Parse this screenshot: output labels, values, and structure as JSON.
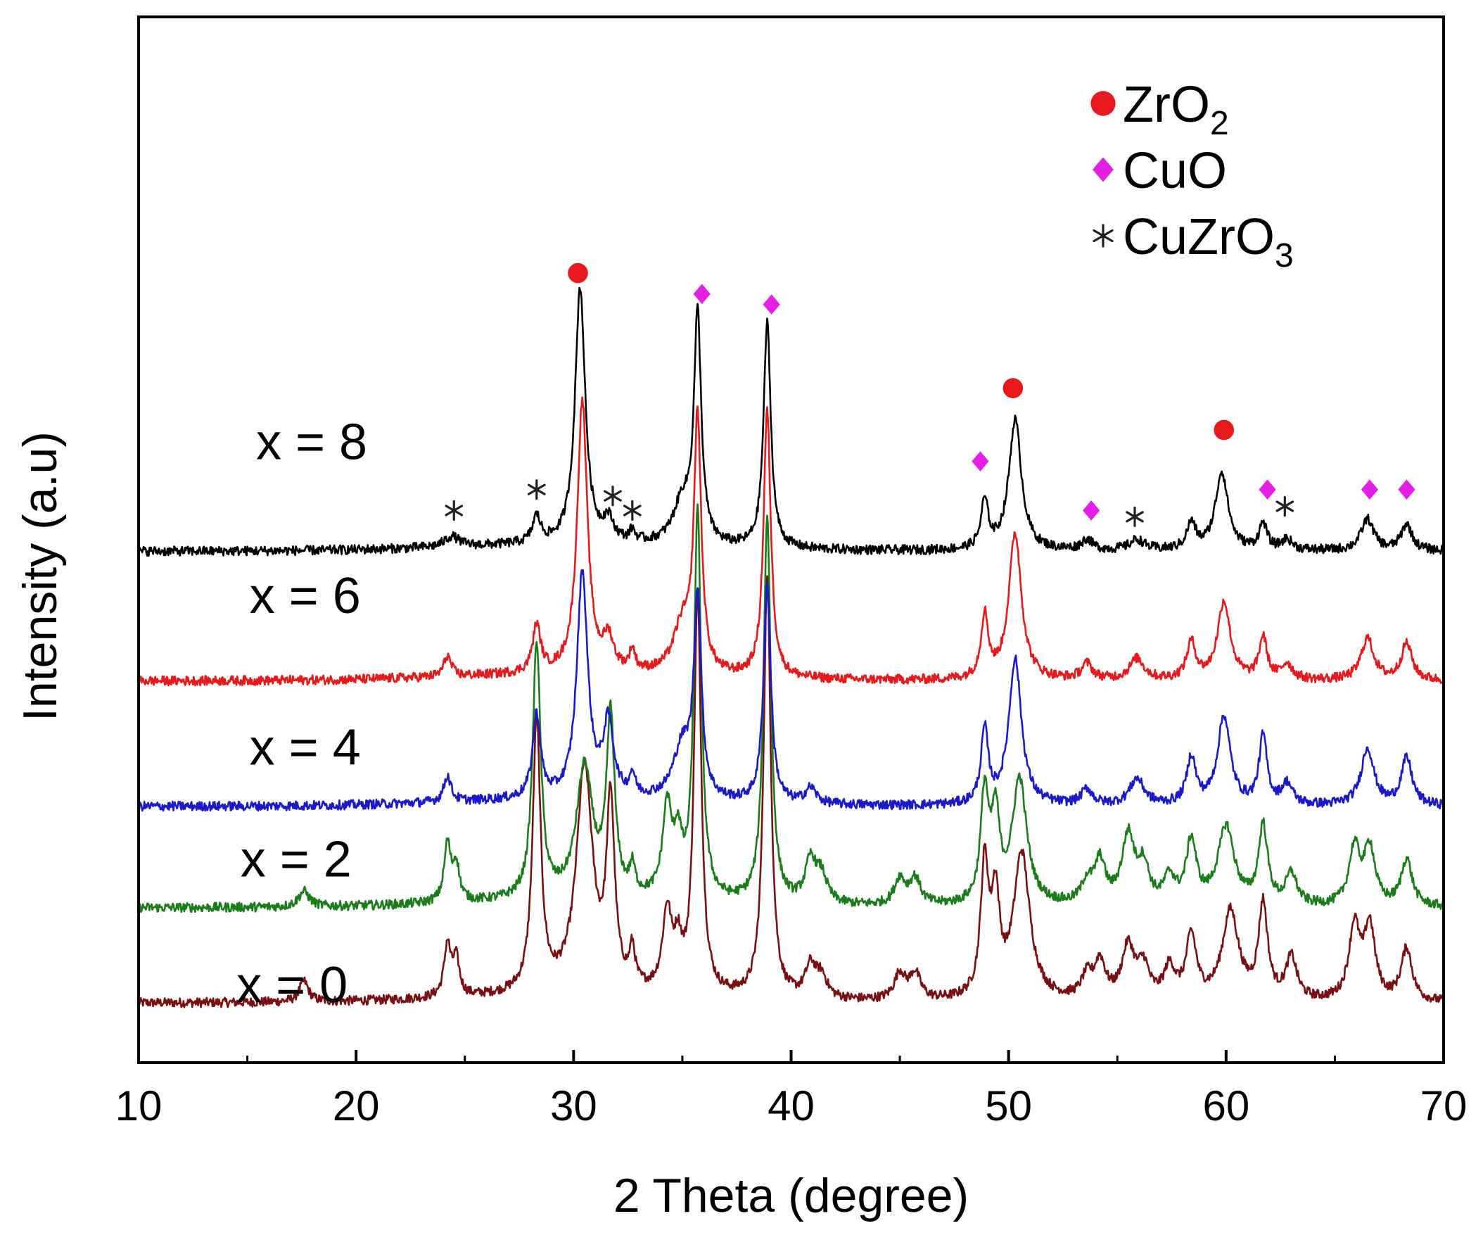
{
  "chart_data": {
    "type": "line",
    "title": "",
    "xlabel": "2 Theta (degree)",
    "ylabel": "Intensity (a.u)",
    "xlim": [
      10,
      70
    ],
    "ylim": [
      0,
      1
    ],
    "xticks": [
      10,
      20,
      30,
      40,
      50,
      60,
      70
    ],
    "xtick_labels": [
      "10",
      "20",
      "30",
      "40",
      "50",
      "60",
      "70"
    ],
    "grid": false,
    "legend_position": "top-right",
    "legend": [
      {
        "marker": "circle",
        "color": "#e8191b",
        "label": "ZrO",
        "sub": "2"
      },
      {
        "marker": "diamond",
        "color": "#e61fe6",
        "label": "CuO",
        "sub": ""
      },
      {
        "marker": "asterisk",
        "color": "#222222",
        "label": "CuZrO",
        "sub": "3"
      }
    ],
    "series": [
      {
        "name": "x = 0",
        "label": "x = 0",
        "color": "#7a0f12",
        "baseline": 0.057,
        "peaks": [
          [
            17.6,
            0.02,
            0.25
          ],
          [
            24.2,
            0.05,
            0.18
          ],
          [
            24.6,
            0.035,
            0.18
          ],
          [
            28.3,
            0.26,
            0.22
          ],
          [
            30.5,
            0.215,
            0.45
          ],
          [
            31.7,
            0.175,
            0.22
          ],
          [
            32.7,
            0.035,
            0.15
          ],
          [
            34.3,
            0.075,
            0.25
          ],
          [
            34.8,
            0.04,
            0.22
          ],
          [
            35.7,
            0.38,
            0.2
          ],
          [
            38.9,
            0.4,
            0.2
          ],
          [
            40.9,
            0.03,
            0.3
          ],
          [
            41.4,
            0.02,
            0.3
          ],
          [
            45.0,
            0.025,
            0.3
          ],
          [
            45.7,
            0.025,
            0.3
          ],
          [
            48.9,
            0.125,
            0.22
          ],
          [
            49.4,
            0.09,
            0.22
          ],
          [
            50.6,
            0.14,
            0.45
          ],
          [
            53.6,
            0.02,
            0.3
          ],
          [
            54.2,
            0.035,
            0.3
          ],
          [
            55.5,
            0.05,
            0.35
          ],
          [
            56.2,
            0.03,
            0.3
          ],
          [
            57.4,
            0.03,
            0.3
          ],
          [
            58.4,
            0.06,
            0.28
          ],
          [
            60.2,
            0.085,
            0.45
          ],
          [
            61.7,
            0.09,
            0.25
          ],
          [
            63.0,
            0.04,
            0.3
          ],
          [
            65.9,
            0.07,
            0.3
          ],
          [
            66.6,
            0.07,
            0.3
          ],
          [
            68.3,
            0.05,
            0.3
          ]
        ]
      },
      {
        "name": "x = 2",
        "label": "x = 2",
        "color": "#1a7d1a",
        "baseline": 0.148,
        "peaks": [
          [
            17.6,
            0.015,
            0.3
          ],
          [
            24.2,
            0.055,
            0.18
          ],
          [
            24.6,
            0.035,
            0.18
          ],
          [
            28.3,
            0.245,
            0.22
          ],
          [
            30.5,
            0.125,
            0.45
          ],
          [
            31.7,
            0.17,
            0.22
          ],
          [
            32.7,
            0.025,
            0.15
          ],
          [
            34.3,
            0.085,
            0.25
          ],
          [
            34.8,
            0.05,
            0.22
          ],
          [
            35.7,
            0.37,
            0.2
          ],
          [
            38.9,
            0.37,
            0.2
          ],
          [
            40.9,
            0.04,
            0.3
          ],
          [
            41.4,
            0.025,
            0.3
          ],
          [
            45.0,
            0.025,
            0.3
          ],
          [
            45.7,
            0.025,
            0.3
          ],
          [
            48.9,
            0.105,
            0.22
          ],
          [
            49.4,
            0.08,
            0.22
          ],
          [
            50.5,
            0.12,
            0.4
          ],
          [
            53.6,
            0.02,
            0.3
          ],
          [
            54.2,
            0.04,
            0.3
          ],
          [
            55.5,
            0.065,
            0.35
          ],
          [
            56.2,
            0.035,
            0.3
          ],
          [
            57.4,
            0.025,
            0.3
          ],
          [
            58.4,
            0.06,
            0.28
          ],
          [
            60.0,
            0.075,
            0.45
          ],
          [
            61.7,
            0.075,
            0.25
          ],
          [
            63.0,
            0.03,
            0.3
          ],
          [
            65.9,
            0.055,
            0.3
          ],
          [
            66.6,
            0.055,
            0.3
          ],
          [
            68.3,
            0.045,
            0.3
          ]
        ]
      },
      {
        "name": "x = 4",
        "label": "x = 4",
        "color": "#1a1acc",
        "baseline": 0.245,
        "peaks": [
          [
            24.2,
            0.025,
            0.2
          ],
          [
            28.3,
            0.08,
            0.22
          ],
          [
            30.4,
            0.215,
            0.3
          ],
          [
            31.6,
            0.07,
            0.28
          ],
          [
            32.7,
            0.02,
            0.15
          ],
          [
            35.0,
            0.05,
            0.5
          ],
          [
            35.7,
            0.19,
            0.2
          ],
          [
            38.9,
            0.21,
            0.2
          ],
          [
            40.9,
            0.015,
            0.3
          ],
          [
            48.9,
            0.07,
            0.2
          ],
          [
            50.3,
            0.14,
            0.35
          ],
          [
            53.6,
            0.015,
            0.3
          ],
          [
            55.9,
            0.025,
            0.4
          ],
          [
            58.4,
            0.045,
            0.25
          ],
          [
            59.9,
            0.085,
            0.35
          ],
          [
            61.7,
            0.065,
            0.22
          ],
          [
            62.8,
            0.02,
            0.3
          ],
          [
            66.5,
            0.055,
            0.35
          ],
          [
            68.3,
            0.045,
            0.3
          ]
        ]
      },
      {
        "name": "x = 6",
        "label": "x = 6",
        "color": "#e8191b",
        "baseline": 0.365,
        "peaks": [
          [
            24.2,
            0.02,
            0.2
          ],
          [
            28.3,
            0.045,
            0.22
          ],
          [
            30.4,
            0.26,
            0.28
          ],
          [
            31.6,
            0.03,
            0.28
          ],
          [
            32.7,
            0.02,
            0.15
          ],
          [
            35.0,
            0.045,
            0.5
          ],
          [
            35.7,
            0.24,
            0.2
          ],
          [
            38.9,
            0.255,
            0.2
          ],
          [
            48.9,
            0.06,
            0.2
          ],
          [
            50.3,
            0.14,
            0.35
          ],
          [
            53.6,
            0.015,
            0.3
          ],
          [
            55.9,
            0.02,
            0.4
          ],
          [
            58.4,
            0.035,
            0.25
          ],
          [
            59.9,
            0.075,
            0.35
          ],
          [
            61.7,
            0.04,
            0.22
          ],
          [
            62.8,
            0.015,
            0.3
          ],
          [
            66.5,
            0.04,
            0.35
          ],
          [
            68.3,
            0.035,
            0.3
          ]
        ]
      },
      {
        "name": "x = 8",
        "label": "x = 8",
        "color": "#000000",
        "baseline": 0.489,
        "peaks": [
          [
            24.4,
            0.01,
            0.4
          ],
          [
            28.3,
            0.025,
            0.22
          ],
          [
            30.3,
            0.245,
            0.28
          ],
          [
            31.6,
            0.02,
            0.28
          ],
          [
            32.7,
            0.01,
            0.15
          ],
          [
            35.0,
            0.04,
            0.5
          ],
          [
            35.7,
            0.215,
            0.2
          ],
          [
            38.9,
            0.215,
            0.2
          ],
          [
            48.9,
            0.045,
            0.2
          ],
          [
            50.3,
            0.125,
            0.35
          ],
          [
            53.6,
            0.01,
            0.3
          ],
          [
            55.9,
            0.01,
            0.4
          ],
          [
            58.4,
            0.025,
            0.25
          ],
          [
            59.8,
            0.075,
            0.35
          ],
          [
            61.7,
            0.025,
            0.22
          ],
          [
            62.8,
            0.01,
            0.3
          ],
          [
            66.5,
            0.03,
            0.35
          ],
          [
            68.3,
            0.025,
            0.3
          ]
        ]
      }
    ],
    "annotations": [
      {
        "series": "x = 8",
        "marker": "circle",
        "x": 30.2,
        "y": 0.755
      },
      {
        "series": "x = 8",
        "marker": "circle",
        "x": 50.2,
        "y": 0.645
      },
      {
        "series": "x = 8",
        "marker": "circle",
        "x": 59.9,
        "y": 0.605
      },
      {
        "series": "x = 8",
        "marker": "diamond",
        "x": 35.9,
        "y": 0.735
      },
      {
        "series": "x = 8",
        "marker": "diamond",
        "x": 39.1,
        "y": 0.725
      },
      {
        "series": "x = 8",
        "marker": "diamond",
        "x": 48.7,
        "y": 0.575
      },
      {
        "series": "x = 8",
        "marker": "diamond",
        "x": 53.8,
        "y": 0.528
      },
      {
        "series": "x = 8",
        "marker": "diamond",
        "x": 61.9,
        "y": 0.548
      },
      {
        "series": "x = 8",
        "marker": "diamond",
        "x": 66.6,
        "y": 0.548
      },
      {
        "series": "x = 8",
        "marker": "diamond",
        "x": 68.3,
        "y": 0.548
      },
      {
        "series": "x = 8",
        "marker": "asterisk",
        "x": 24.5,
        "y": 0.528
      },
      {
        "series": "x = 8",
        "marker": "asterisk",
        "x": 28.3,
        "y": 0.548
      },
      {
        "series": "x = 8",
        "marker": "asterisk",
        "x": 31.8,
        "y": 0.542
      },
      {
        "series": "x = 8",
        "marker": "asterisk",
        "x": 32.7,
        "y": 0.528
      },
      {
        "series": "x = 8",
        "marker": "asterisk",
        "x": 55.8,
        "y": 0.522
      },
      {
        "series": "x = 8",
        "marker": "asterisk",
        "x": 62.7,
        "y": 0.532
      }
    ]
  }
}
